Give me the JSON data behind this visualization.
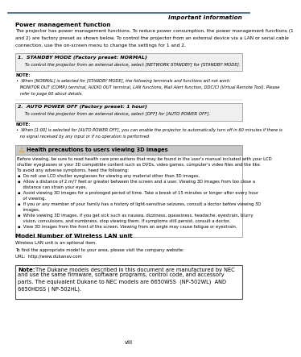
{
  "page_num": "viii",
  "header_text": "Important Information",
  "header_line_color": "#2a6096",
  "bg_color": "#ffffff",
  "section1_title": "Power management function",
  "section1_body_lines": [
    "The projector has power management functions. To reduce power consumption, the power management functions (1",
    "and 2) are factory preset as shown below. To control the projector from an external device via a LAN or serial cable",
    "connection, use the on-screen menu to change the settings for 1 and 2."
  ],
  "box1_title": "1.  STANDBY MODE (Factory preset: NORMAL)",
  "box1_body": "     To control the projector from an external device, select [NETWORK STANDBY] for [STANDBY MODE].",
  "note1_title": "NOTE:",
  "note1_lines": [
    "•  When [NORMAL] is selected for [STANDBY MODE], the following terminals and functions will not work:",
    "   MONITOR OUT (COMP.) terminal, AUDIO OUT terminal, LAN functions, Mail Alert function, DDC/CI (Virtual Remote Tool). Please",
    "   refer to page 60 about details."
  ],
  "box2_title": "2.  AUTO POWER OFF (Factory preset: 1 hour)",
  "box2_body": "     To control the projector from an external device, select [OFF] for [AUTO POWER OFF].",
  "note2_title": "NOTE:",
  "note2_lines": [
    "•  When [1:00] is selected for [AUTO POWER OFF], you can enable the projector to automatically turn off in 60 minutes if there is",
    "   no signal received by any input or if no operation is performed."
  ],
  "health_title": "  Health precautions to users viewing 3D images",
  "health_intro_lines": [
    "Before viewing, be sure to read health care precautions that may be found in the user's manual included with your LCD",
    "shutter eyeglasses or your 3D compatible content such as DVDs, video games, computer's video files and the like.",
    "To avoid any adverse symptoms, heed the following:"
  ],
  "health_bullets": [
    "▪  Do not use LCD shutter eyeglasses for viewing any material other than 3D images.",
    "▪  Allow a distance of 2 m/7 feet or greater between the screen and a user. Viewing 3D images from too close a",
    "    distance can strain your eyes.",
    "▪  Avoid viewing 3D images for a prolonged period of time. Take a break of 15 minutes or longer after every hour",
    "    of viewing.",
    "▪  If you or any member of your family has a history of light-sensitive seizures, consult a doctor before viewing 3D",
    "    images.",
    "▪  While viewing 3D images, if you get sick such as nausea, dizziness, queasiness, headache, eyestrain, blurry",
    "    vision, convulsions, and numbness, stop viewing them. If symptoms still persist, consult a doctor.",
    "▪  View 3D images from the front of the screen. Viewing from an angle may cause fatigue or eyestrain."
  ],
  "model_title": "Model Number of Wireless LAN unit",
  "model_lines": [
    "Wireless LAN unit is an optional item.",
    "To find the appropriate model to your area, please visit the company website:",
    "URL:  http://www.dukanav.com"
  ],
  "note_box_title": "Note:",
  "note_box_lines": [
    " The Dukane models described in this document are manufactured by NEC",
    "and use the same firmware, software programs, control code, and accessory",
    "parts. The equivalent Dukane to NEC models are 6650WSS  (NP-502WL)  AND",
    "6650HDSS ( NP-502HL)."
  ]
}
